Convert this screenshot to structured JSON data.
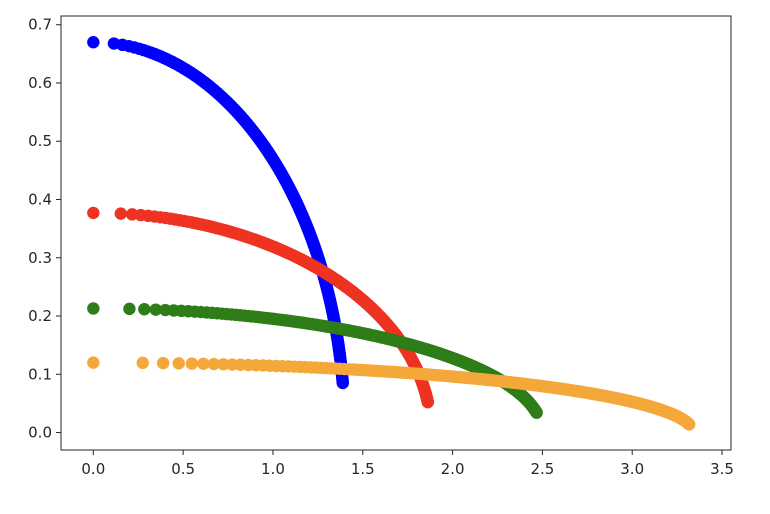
{
  "chart_data": {
    "type": "scatter",
    "title": "",
    "xlabel": "",
    "ylabel": "",
    "xlim": [
      -0.18,
      3.55
    ],
    "ylim": [
      -0.03,
      0.715
    ],
    "grid": false,
    "legend": "none",
    "x_ticks": [
      "0.0",
      "0.5",
      "1.0",
      "1.5",
      "2.0",
      "2.5",
      "3.0",
      "3.5"
    ],
    "y_ticks": [
      "0.0",
      "0.1",
      "0.2",
      "0.3",
      "0.4",
      "0.5",
      "0.6",
      "0.7"
    ],
    "series": [
      {
        "color": "#0000ff",
        "y0": 0.67,
        "xmax": 1.4,
        "ymin": 0.085
      },
      {
        "color": "#ee3322",
        "y0": 0.377,
        "xmax": 1.88,
        "ymin": 0.052
      },
      {
        "color": "#2e7d18",
        "y0": 0.213,
        "xmax": 2.5,
        "ymin": 0.034
      },
      {
        "color": "#f5a83a",
        "y0": 0.12,
        "xmax": 3.34,
        "ymin": 0.014
      }
    ]
  }
}
